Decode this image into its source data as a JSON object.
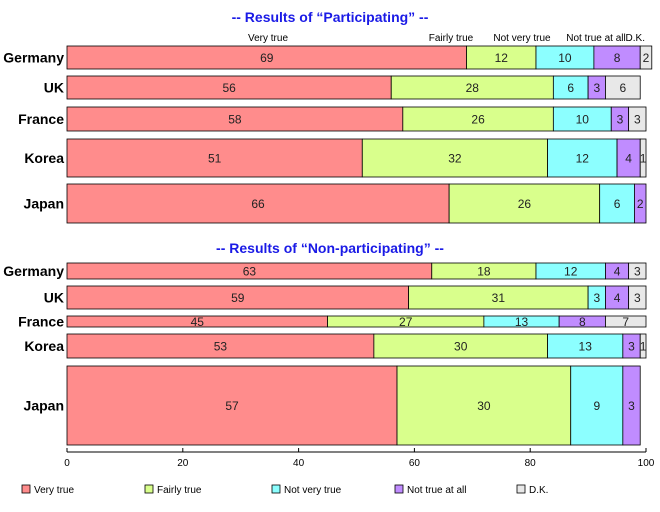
{
  "chart_data": {
    "type": "bar",
    "orientation": "horizontal",
    "stacked": true,
    "xlim": [
      0,
      100
    ],
    "xticks": [
      0,
      20,
      40,
      60,
      80,
      100
    ],
    "legend_position": "bottom",
    "categories_legend": [
      "Very true",
      "Fairly true",
      "Not very true",
      "Not true at all",
      "D.K."
    ],
    "colors": [
      "#ff8c8c",
      "#d9ff8c",
      "#8cffff",
      "#c08cff",
      "#e8e8e8"
    ],
    "panels": [
      {
        "title": "-- Results of “Participating” --",
        "header_labels": [
          "Very true",
          "Fairly true",
          "Not very true",
          "Not true at all",
          "D.K."
        ],
        "rows": [
          {
            "label": "Germany",
            "values": [
              69,
              12,
              10,
              8,
              2
            ]
          },
          {
            "label": "UK",
            "values": [
              56,
              28,
              6,
              3,
              6
            ]
          },
          {
            "label": "France",
            "values": [
              58,
              26,
              10,
              3,
              3
            ]
          },
          {
            "label": "Korea",
            "values": [
              51,
              32,
              12,
              4,
              1
            ]
          },
          {
            "label": "Japan",
            "values": [
              66,
              26,
              6,
              2,
              0
            ]
          }
        ]
      },
      {
        "title": "-- Results of “Non-participating” --",
        "rows": [
          {
            "label": "Germany",
            "values": [
              63,
              18,
              12,
              4,
              3
            ]
          },
          {
            "label": "UK",
            "values": [
              59,
              31,
              3,
              4,
              3
            ]
          },
          {
            "label": "France",
            "values": [
              45,
              27,
              13,
              8,
              7
            ]
          },
          {
            "label": "Korea",
            "values": [
              53,
              30,
              13,
              3,
              1
            ]
          },
          {
            "label": "Japan",
            "values": [
              57,
              30,
              9,
              3,
              0
            ]
          }
        ]
      }
    ]
  }
}
